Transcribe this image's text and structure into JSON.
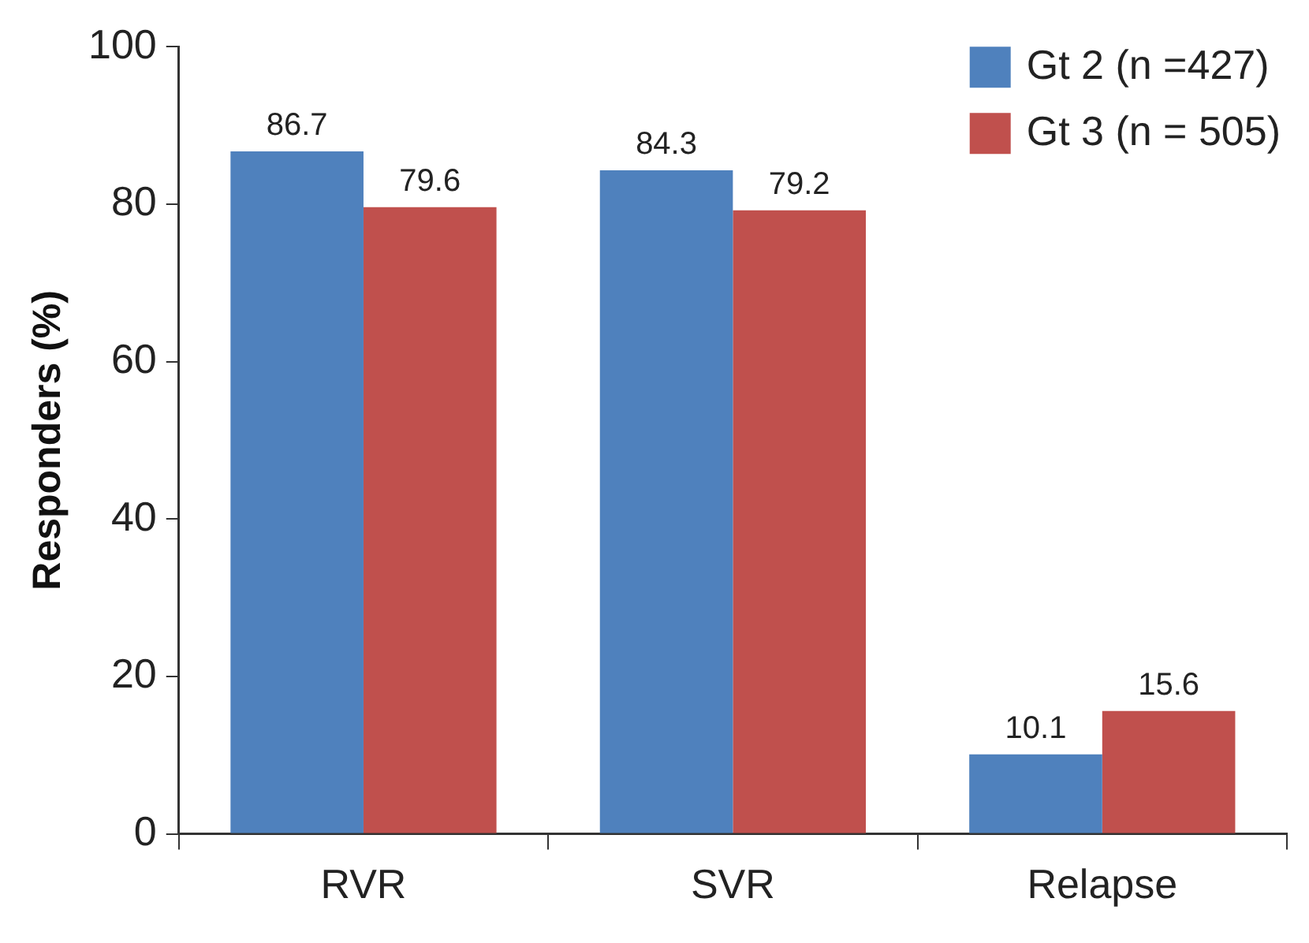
{
  "chart_data": {
    "type": "bar",
    "ylabel": "Responders (%)",
    "categories": [
      "RVR",
      "SVR",
      "Relapse"
    ],
    "series": [
      {
        "name": "Gt 2 (n =427)",
        "color": "#4f81bd",
        "values": [
          86.7,
          84.3,
          10.1
        ]
      },
      {
        "name": "Gt 3 (n = 505)",
        "color": "#c0504d",
        "values": [
          79.6,
          79.2,
          15.6
        ]
      }
    ],
    "ylim": [
      0,
      100
    ],
    "yticks": [
      0,
      20,
      40,
      60,
      80,
      100
    ],
    "grid": false,
    "legend": "top right",
    "data_labels": true
  }
}
